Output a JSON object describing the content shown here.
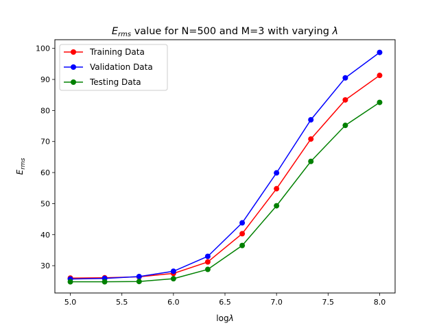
{
  "chart_data": {
    "type": "line",
    "title": {
      "prefix": "E",
      "prefix_sub": "rms",
      "middle": " value for N=500 and M=3 with varying ",
      "symbol": "λ"
    },
    "xlabel": {
      "text": "log",
      "symbol": "λ"
    },
    "ylabel": {
      "text": "E",
      "sub": "rms"
    },
    "x": [
      5.0,
      5.333,
      5.667,
      6.0,
      6.333,
      6.667,
      7.0,
      7.333,
      7.667,
      8.0
    ],
    "xlim": [
      4.85,
      8.15
    ],
    "ylim": [
      21.2,
      102.8
    ],
    "xticks": [
      5.0,
      5.5,
      6.0,
      6.5,
      7.0,
      7.5,
      8.0
    ],
    "xtick_labels": [
      "5.0",
      "5.5",
      "6.0",
      "6.5",
      "7.0",
      "7.5",
      "8.0"
    ],
    "yticks": [
      30,
      40,
      50,
      60,
      70,
      80,
      90,
      100
    ],
    "ytick_labels": [
      "30",
      "40",
      "50",
      "60",
      "70",
      "80",
      "90",
      "100"
    ],
    "grid": false,
    "legend_position": "top-left",
    "series": [
      {
        "name": "Training Data",
        "color": "#ff0000",
        "values": [
          26.0,
          26.1,
          26.4,
          27.5,
          31.2,
          40.3,
          54.8,
          70.8,
          83.4,
          91.3
        ]
      },
      {
        "name": "Validation Data",
        "color": "#0000ff",
        "values": [
          25.7,
          25.9,
          26.5,
          28.2,
          33.0,
          43.8,
          59.9,
          77.0,
          90.5,
          98.7
        ]
      },
      {
        "name": "Testing Data",
        "color": "#008000",
        "values": [
          24.8,
          24.8,
          24.9,
          25.8,
          28.8,
          36.5,
          49.3,
          63.6,
          75.2,
          82.6
        ]
      }
    ]
  }
}
